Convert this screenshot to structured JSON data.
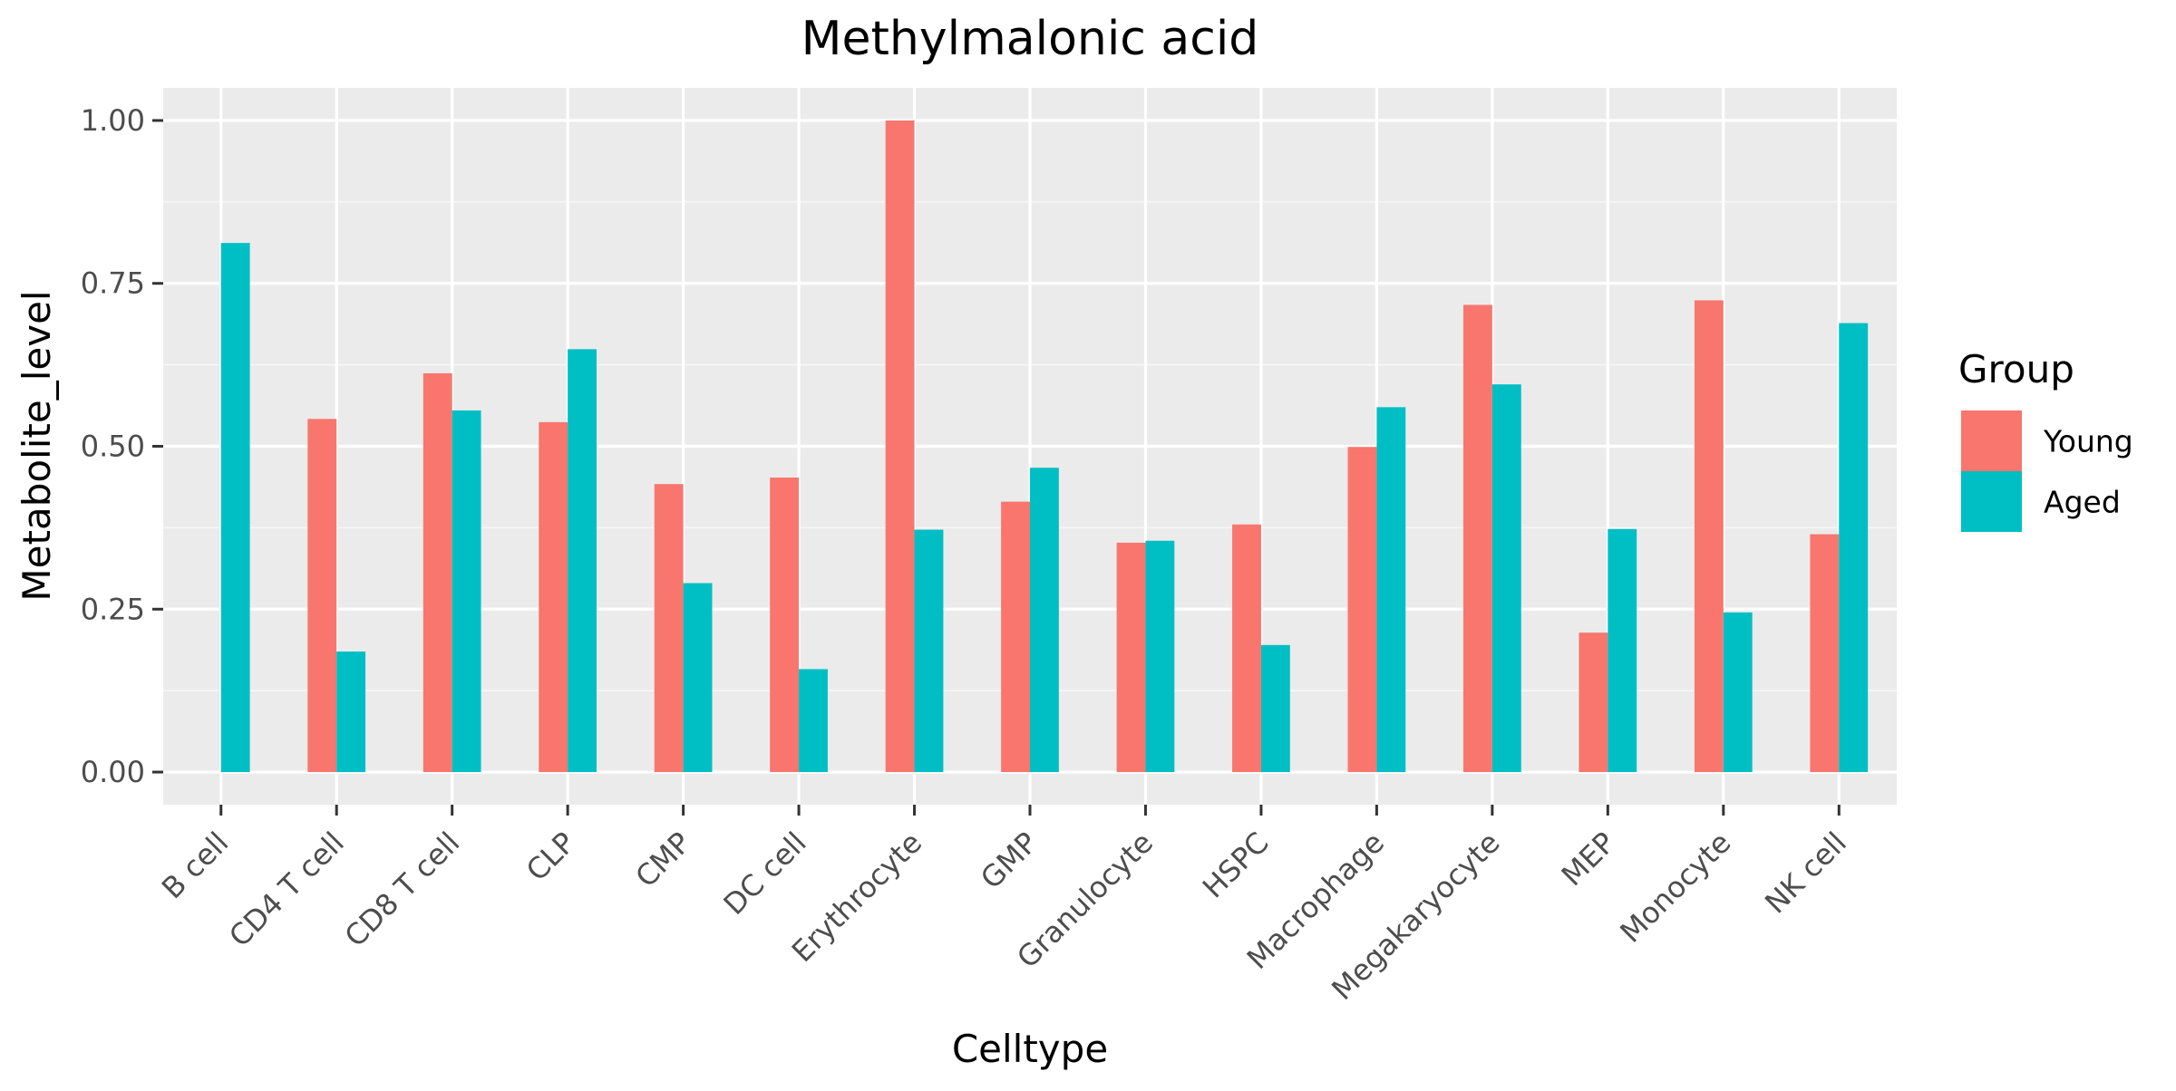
{
  "chart_data": {
    "type": "bar",
    "title": "Methylmalonic acid",
    "xlabel": "Celltype",
    "ylabel": "Metabolite_level",
    "categories": [
      "B cell",
      "CD4 T cell",
      "CD8 T cell",
      "CLP",
      "CMP",
      "DC cell",
      "Erythrocyte",
      "GMP",
      "Granulocyte",
      "HSPC",
      "Macrophage",
      "Megakaryocyte",
      "MEP",
      "Monocyte",
      "NK cell"
    ],
    "series": [
      {
        "name": "Young",
        "color": "#F8766D",
        "values": [
          null,
          0.542,
          0.612,
          0.537,
          0.442,
          0.452,
          1.0,
          0.415,
          0.352,
          0.38,
          0.499,
          0.717,
          0.214,
          0.724,
          0.365
        ]
      },
      {
        "name": "Aged",
        "color": "#00BFC4",
        "values": [
          0.812,
          0.185,
          0.555,
          0.649,
          0.29,
          0.158,
          0.372,
          0.467,
          0.355,
          0.195,
          0.56,
          0.595,
          0.373,
          0.245,
          0.689
        ]
      }
    ],
    "ylim": [
      -0.05,
      1.05
    ],
    "yticks": [
      0,
      0.25,
      0.5,
      0.75,
      1.0
    ],
    "ytick_labels": [
      "0.00",
      "0.25",
      "0.50",
      "0.75",
      "1.00"
    ],
    "grid": true,
    "legend": {
      "title": "Group",
      "position": "right"
    },
    "colors": {
      "panel_background": "#EBEBEB",
      "grid_major": "#FFFFFF",
      "grid_minor": "#F7F7F7",
      "tick_color": "#333333"
    }
  }
}
